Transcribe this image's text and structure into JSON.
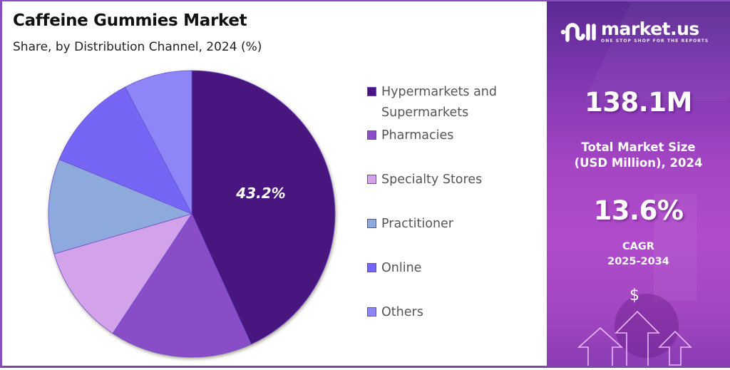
{
  "header": {
    "title": "Caffeine Gummies Market",
    "subtitle": "Share, by Distribution Channel, 2024 (%)"
  },
  "chart_data": {
    "type": "pie",
    "title": "Caffeine Gummies Market",
    "subtitle": "Share, by Distribution Channel, 2024 (%)",
    "categories": [
      "Hypermarkets and Supermarkets",
      "Pharmacies",
      "Specialty Stores",
      "Practitioner",
      "Online",
      "Others"
    ],
    "values": [
      43.2,
      16.1,
      11.2,
      10.7,
      11.1,
      7.7
    ],
    "colors": [
      "#4a1580",
      "#8a4ec8",
      "#d4a2ea",
      "#8eaadc",
      "#7466f5",
      "#8c86f8"
    ],
    "data_labels": [
      {
        "category": "Hypermarkets and Supermarkets",
        "text": "43.2%"
      }
    ],
    "start_angle": "12 o'clock, clockwise",
    "legend_position": "right"
  },
  "pie": {
    "label_text": "43.2%"
  },
  "legend": {
    "items": [
      {
        "line1": "Hypermarkets and",
        "line2": "Supermarkets",
        "color": "#4a1580"
      },
      {
        "line1": "Pharmacies",
        "color": "#8a4ec8"
      },
      {
        "line1": "Specialty Stores",
        "color": "#d4a2ea"
      },
      {
        "line1": "Practitioner",
        "color": "#8eaadc"
      },
      {
        "line1": "Online",
        "color": "#7466f5"
      },
      {
        "line1": "Others",
        "color": "#8c86f8"
      }
    ]
  },
  "sidebar": {
    "logo_text": "market.us",
    "logo_tagline": "ONE STOP SHOP FOR THE REPORTS",
    "market_size_value": "138.1M",
    "market_size_label_1": "Total Market Size",
    "market_size_label_2": "(USD Million), 2024",
    "cagr_value": "13.6%",
    "cagr_label_1": "CAGR",
    "cagr_label_2": "2025-2034",
    "dollar_icon": "$"
  }
}
